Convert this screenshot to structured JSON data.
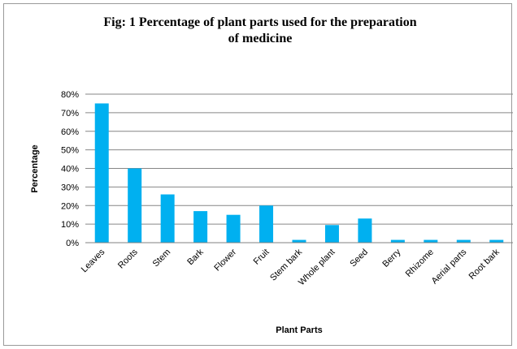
{
  "chart_data": {
    "type": "bar",
    "title_line1": "Fig: 1 Percentage of plant parts used for the preparation",
    "title_line2": "of medicine",
    "xlabel": "Plant Parts",
    "ylabel": "Percentage",
    "categories": [
      "Leaves",
      "Roots",
      "Stem",
      "Bark",
      "Flower",
      "Fruit",
      "Stem bark",
      "Whole plant",
      "Seed",
      "Berry",
      "Rhizome",
      "Aerial parts",
      "Root bark"
    ],
    "values": [
      75,
      40,
      26,
      17,
      15,
      20,
      1.5,
      9.5,
      13,
      1.5,
      1.5,
      1.5,
      1.5
    ],
    "ylim": [
      0,
      80
    ],
    "yticks": [
      "0%",
      "10%",
      "20%",
      "30%",
      "40%",
      "50%",
      "60%",
      "70%",
      "80%"
    ],
    "grid": true,
    "bar_color": "#00B0F0"
  }
}
